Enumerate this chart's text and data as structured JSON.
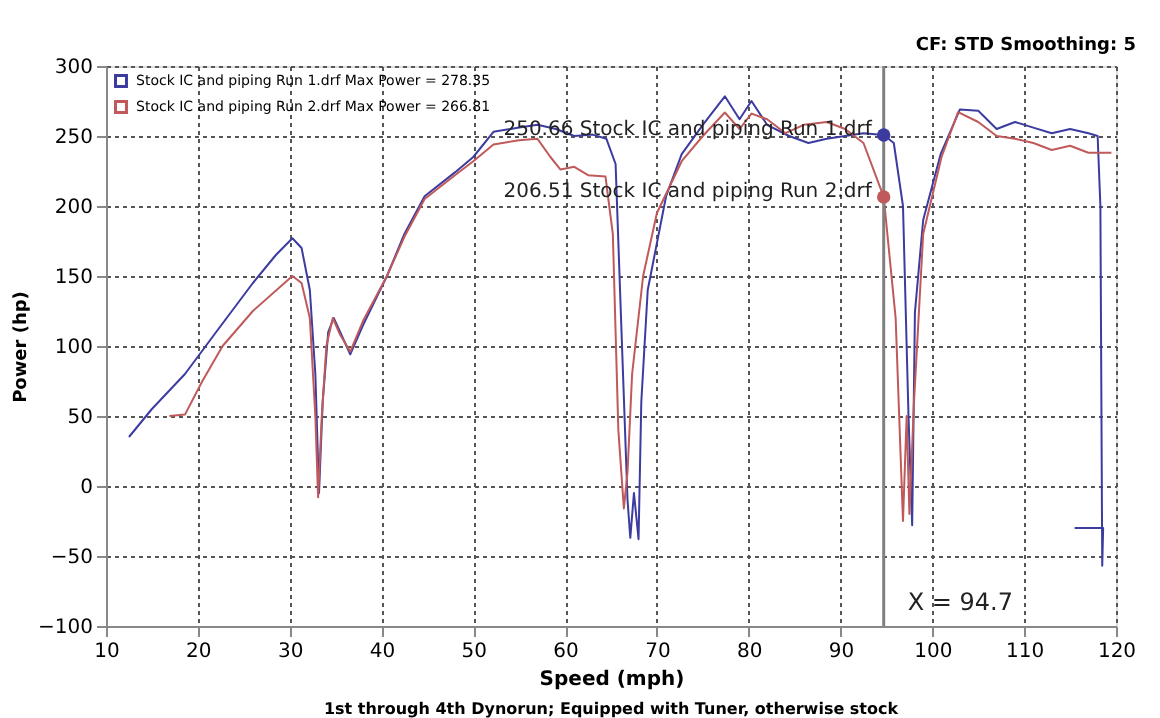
{
  "chart_data": {
    "type": "line",
    "xlabel": "Speed (mph)",
    "ylabel": "Power (hp)",
    "xlim": [
      10,
      120
    ],
    "xticks": [
      10,
      20,
      30,
      40,
      50,
      60,
      70,
      80,
      90,
      100,
      110,
      120
    ],
    "ylim": [
      -100,
      300
    ],
    "yticks": [
      -100,
      -50,
      0,
      50,
      100,
      150,
      200,
      250,
      300
    ],
    "grid": true,
    "legend": "top left",
    "marker": "none",
    "line_style": "solid",
    "series": [
      {
        "name": "Stock IC and piping Run 1.drf Max Power = 278.35",
        "color": "#3c3ca0",
        "x": [
          12.5,
          15,
          18.6,
          22,
          26,
          28.5,
          30.3,
          31.3,
          32.2,
          32.8,
          33.2,
          33.6,
          34.2,
          34.8,
          35.5,
          36.6,
          38,
          40.6,
          42.5,
          44.7,
          48,
          50,
          52.2,
          55,
          57,
          59,
          61,
          63,
          64.5,
          65.5,
          66.2,
          66.8,
          67.1,
          67.5,
          68,
          68.3,
          69,
          71,
          72.7,
          75,
          77.4,
          79,
          80.3,
          82,
          84.4,
          86.5,
          88.5,
          90.5,
          92.5,
          94.7,
          95.8,
          96.8,
          97.4,
          97.8,
          98.1,
          99,
          100.9,
          103,
          105,
          107,
          109,
          111,
          113,
          115,
          117,
          118,
          118.3,
          118.5,
          118.6,
          115.5
        ],
        "values": [
          35,
          55,
          80,
          110,
          145,
          165,
          177,
          170,
          140,
          80,
          -5,
          60,
          110,
          120,
          110,
          94,
          115,
          150,
          180,
          207,
          224,
          235,
          253,
          256,
          258,
          255,
          250,
          251,
          248,
          230,
          100,
          -10,
          -37,
          -5,
          -38,
          60,
          140,
          207,
          237,
          258,
          278.35,
          262,
          275,
          258,
          250,
          245,
          248,
          250,
          252,
          250.66,
          245,
          200,
          50,
          -28,
          124,
          190,
          237,
          269,
          268,
          255,
          260,
          256,
          252,
          255,
          252,
          250,
          200,
          -57,
          -30,
          -30
        ]
      },
      {
        "name": "Stock IC and piping Run 2.drf Max Power = 266.81",
        "color": "#c05a5a",
        "x": [
          16.9,
          18.6,
          20.5,
          22.7,
          26,
          30.3,
          31.3,
          32.2,
          32.8,
          33.1,
          33.5,
          34,
          34.7,
          35.5,
          36.6,
          38,
          40.6,
          42.5,
          44.7,
          48,
          50,
          52.2,
          55,
          57,
          58.4,
          59.5,
          61,
          62.5,
          64.4,
          65.2,
          65.8,
          66.4,
          66.8,
          67.3,
          68.5,
          70,
          72.7,
          75,
          77.4,
          79,
          80.3,
          82,
          84,
          86,
          88.5,
          90.5,
          92.5,
          94.7,
          96,
          96.8,
          97.2,
          97.5,
          98,
          99,
          101,
          102.8,
          105,
          107,
          109,
          111,
          113,
          115,
          117,
          119.5
        ],
        "values": [
          50,
          51,
          75,
          100,
          125,
          150,
          145,
          120,
          50,
          -8,
          50,
          100,
          120,
          108,
          96,
          118,
          150,
          178,
          205,
          222,
          232,
          244,
          247,
          248,
          235,
          226,
          228,
          222,
          221,
          180,
          40,
          -16,
          10,
          80,
          150,
          195,
          232,
          250,
          266.81,
          255,
          266,
          262,
          252,
          258,
          260,
          255,
          245,
          206.51,
          120,
          -25,
          50,
          -20,
          60,
          180,
          235,
          267,
          260,
          250,
          248,
          245,
          240,
          243,
          238,
          238
        ]
      }
    ],
    "ref_lines": [
      {
        "axis": "x",
        "value": 94.7,
        "label": "X = 94.7",
        "color": "#808080"
      }
    ],
    "annotations": [
      {
        "text": "250.66 Stock IC and piping Run 1.drf",
        "x": 94.7,
        "y": 250.66
      },
      {
        "text": "206.51 Stock IC and piping Run 2.drf",
        "x": 94.7,
        "y": 206.51
      },
      "CF: STD  Smoothing: 5",
      "1st through 4th Dynorun; Equipped with Tuner, otherwise stock"
    ]
  }
}
